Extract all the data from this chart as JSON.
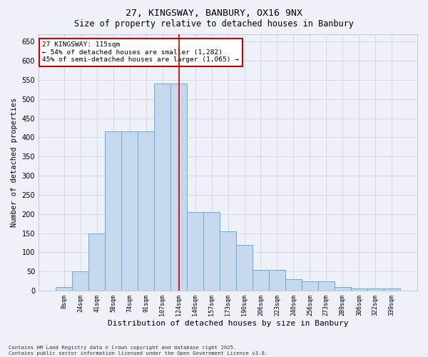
{
  "title1": "27, KINGSWAY, BANBURY, OX16 9NX",
  "title2": "Size of property relative to detached houses in Banbury",
  "xlabel": "Distribution of detached houses by size in Banbury",
  "ylabel": "Number of detached properties",
  "annotation_title": "27 KINGSWAY: 115sqm",
  "annotation_line1": "← 54% of detached houses are smaller (1,282)",
  "annotation_line2": "45% of semi-detached houses are larger (1,065) →",
  "footer1": "Contains HM Land Registry data © Crown copyright and database right 2025.",
  "footer2": "Contains public sector information licensed under the Open Government Licence v3.0.",
  "bar_color": "#c5d8ee",
  "bar_edge_color": "#6aaad4",
  "vline_color": "#cc0000",
  "grid_color": "#c8d8e8",
  "background_color": "#eef2f8",
  "annotation_box_color": "#ffffff",
  "annotation_box_edge": "#cc0000",
  "categories": [
    "8sqm",
    "24sqm",
    "41sqm",
    "58sqm",
    "74sqm",
    "91sqm",
    "107sqm",
    "124sqm",
    "140sqm",
    "157sqm",
    "173sqm",
    "190sqm",
    "206sqm",
    "223sqm",
    "240sqm",
    "256sqm",
    "273sqm",
    "289sqm",
    "306sqm",
    "322sqm",
    "339sqm"
  ],
  "values": [
    10,
    50,
    150,
    415,
    415,
    415,
    540,
    540,
    205,
    205,
    155,
    120,
    55,
    55,
    30,
    25,
    25,
    10,
    5,
    5,
    5
  ],
  "vline_pos": 7.0,
  "ylim": [
    0,
    670
  ],
  "yticks": [
    0,
    50,
    100,
    150,
    200,
    250,
    300,
    350,
    400,
    450,
    500,
    550,
    600,
    650
  ]
}
